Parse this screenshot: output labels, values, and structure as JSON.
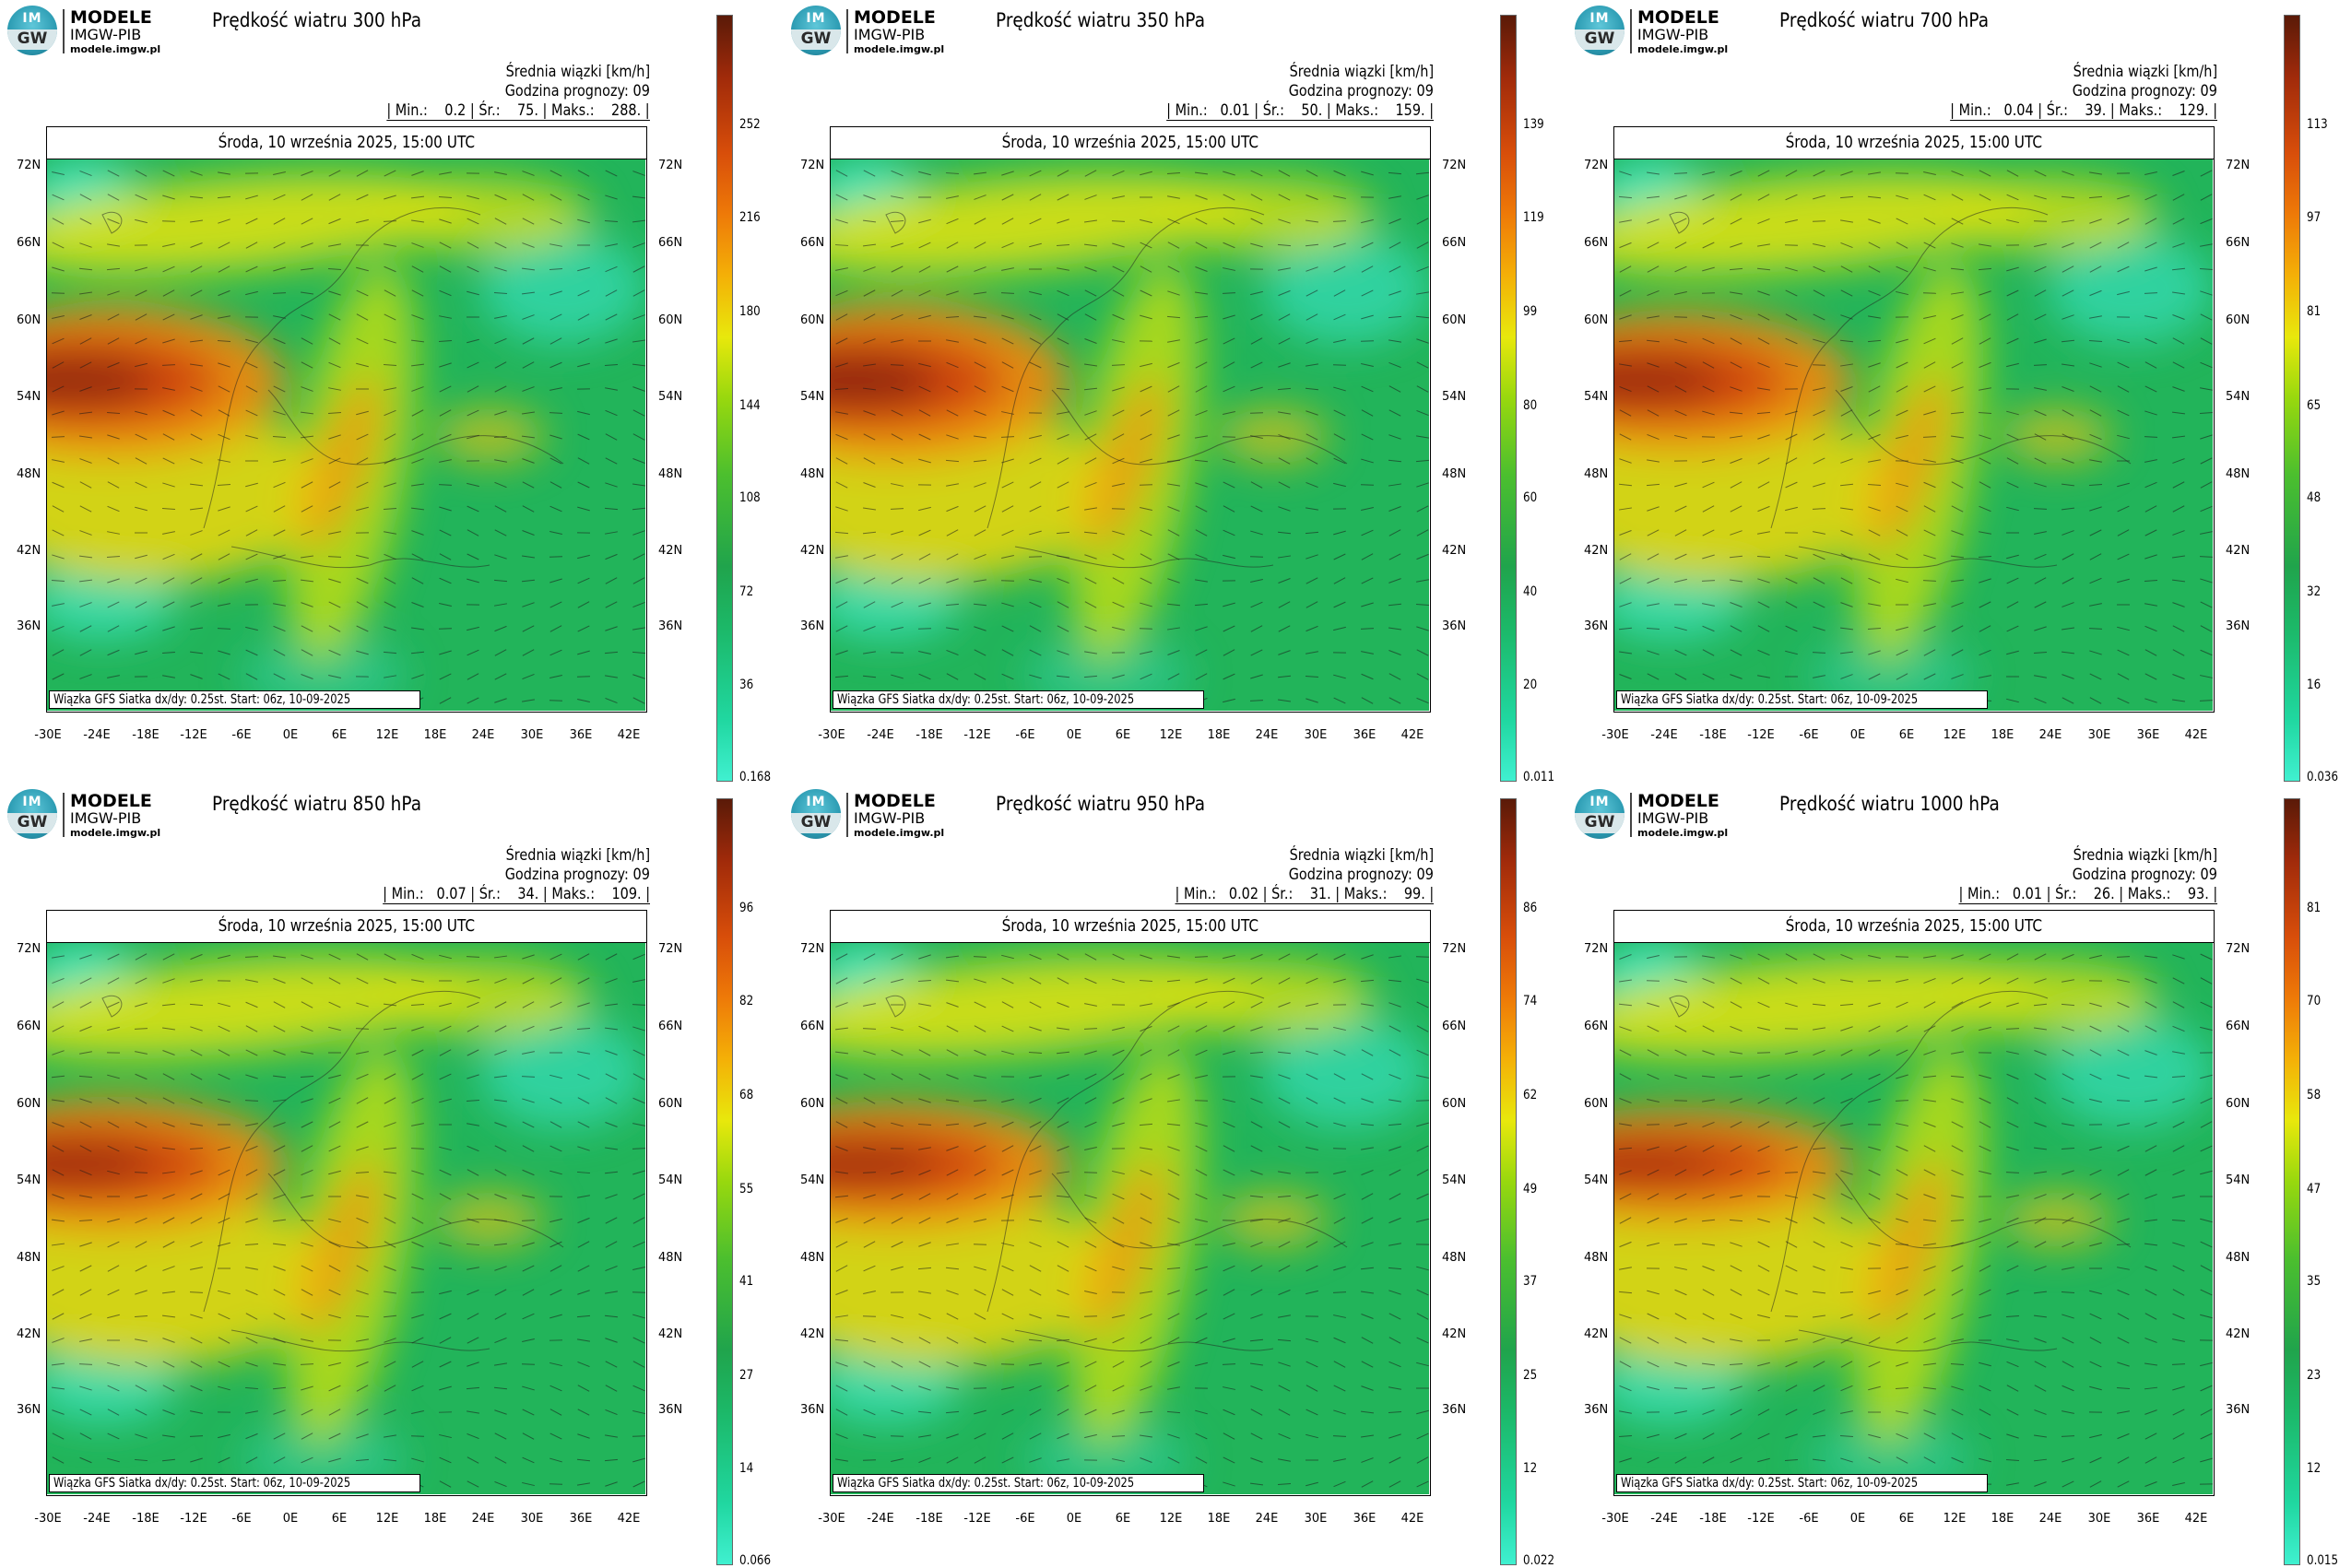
{
  "logo": {
    "line1": "MODELE",
    "line2": "IMGW-PIB",
    "line3": "modele.imgw.pl",
    "badge_top": "IM",
    "badge_bottom": "GW"
  },
  "common": {
    "unit_label": "Średnia wiązki [km/h]",
    "forecast_hour": "Godzina prognozy: 09",
    "valid_time": "Środa, 10 września 2025, 15:00 UTC",
    "footer": "Wiązka GFS Siatka dx/dy: 0.25st. Start: 06z, 10-09-2025",
    "lat_labels": [
      "72N",
      "66N",
      "60N",
      "54N",
      "48N",
      "42N",
      "36N"
    ],
    "lon_labels": [
      "-30E",
      "-24E",
      "-18E",
      "-12E",
      "-6E",
      "0E",
      "6E",
      "12E",
      "18E",
      "24E",
      "30E",
      "36E",
      "42E"
    ]
  },
  "palette": {
    "low": "#40f0d0",
    "green": "#20a44c",
    "yellow": "#e8e80c",
    "orange": "#ee7a08",
    "red": "#d84e0a",
    "max": "#5a1a08"
  },
  "panels": [
    {
      "title": "Prędkość wiatru 300 hPa",
      "stats": "| Min.:    0.2 | Śr.:    75. | Maks.:    288. |",
      "colorbar": [
        "252",
        "216",
        "180",
        "144",
        "108",
        "72",
        "36",
        "0.168"
      ],
      "jet_strength": 0.9
    },
    {
      "title": "Prędkość wiatru 350 hPa",
      "stats": "| Min.:   0.01 | Śr.:    50. | Maks.:    159. |",
      "colorbar": [
        "139",
        "119",
        "99",
        "80",
        "60",
        "40",
        "20",
        "0.011"
      ],
      "jet_strength": 0.95
    },
    {
      "title": "Prędkość wiatru 700 hPa",
      "stats": "| Min.:   0.04 | Śr.:    39. | Maks.:    129. |",
      "colorbar": [
        "113",
        "97",
        "81",
        "65",
        "48",
        "32",
        "16",
        "0.036"
      ],
      "jet_strength": 0.8
    },
    {
      "title": "Prędkość wiatru 850 hPa",
      "stats": "| Min.:   0.07 | Śr.:    34. | Maks.:    109. |",
      "colorbar": [
        "96",
        "82",
        "68",
        "55",
        "41",
        "27",
        "14",
        "0.066"
      ],
      "jet_strength": 0.75
    },
    {
      "title": "Prędkość wiatru 950 hPa",
      "stats": "| Min.:   0.02 | Śr.:    31. | Maks.:    99. |",
      "colorbar": [
        "86",
        "74",
        "62",
        "49",
        "37",
        "25",
        "12",
        "0.022"
      ],
      "jet_strength": 0.7
    },
    {
      "title": "Prędkość wiatru 1000 hPa",
      "stats": "| Min.:   0.01 | Śr.:    26. | Maks.:    93. |",
      "colorbar": [
        "81",
        "70",
        "58",
        "47",
        "35",
        "23",
        "12",
        "0.015"
      ],
      "jet_strength": 0.6
    }
  ]
}
